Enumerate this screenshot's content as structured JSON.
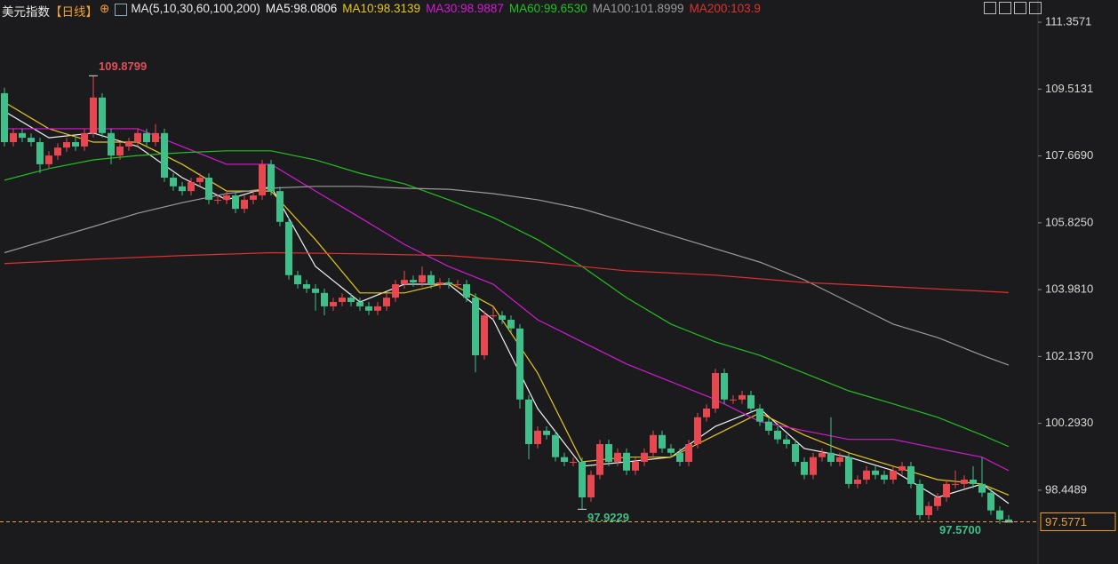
{
  "header": {
    "title": "美元指数",
    "period": "【日线】",
    "symbol": "⊕",
    "indicator": "MA(5,10,30,60,100,200)"
  },
  "chart_data": {
    "type": "candlestick",
    "up_color": "#e8474f",
    "down_color": "#3fbf8a",
    "ylim": [
      96.78,
      111.53
    ],
    "yticks": [
      {
        "value": 98.4489,
        "label": "98.4489"
      },
      {
        "value": 100.293,
        "label": "100.2930"
      },
      {
        "value": 102.137,
        "label": "102.1370"
      },
      {
        "value": 103.981,
        "label": "103.9810"
      },
      {
        "value": 105.825,
        "label": "105.8250"
      },
      {
        "value": 107.669,
        "label": "107.6690"
      },
      {
        "value": 109.5131,
        "label": "109.5131"
      },
      {
        "value": 111.3571,
        "label": "111.3571"
      }
    ],
    "grid": false,
    "candles": [
      [
        109.4,
        109.55,
        107.93,
        108.05
      ],
      [
        108.05,
        108.42,
        107.93,
        108.3
      ],
      [
        108.3,
        108.42,
        108.05,
        108.17
      ],
      [
        108.17,
        108.29,
        107.93,
        108.05
      ],
      [
        108.05,
        108.17,
        107.2,
        107.44
      ],
      [
        107.44,
        107.8,
        107.32,
        107.68
      ],
      [
        107.68,
        108.02,
        107.56,
        107.9
      ],
      [
        107.9,
        108.17,
        107.78,
        108.05
      ],
      [
        108.05,
        108.17,
        107.81,
        107.93
      ],
      [
        107.93,
        108.42,
        107.81,
        108.3
      ],
      [
        108.3,
        109.8799,
        108.18,
        109.28
      ],
      [
        109.28,
        109.4,
        108.18,
        108.3
      ],
      [
        108.3,
        108.42,
        107.44,
        107.68
      ],
      [
        107.68,
        108.05,
        107.56,
        107.93
      ],
      [
        107.93,
        108.17,
        107.81,
        108.05
      ],
      [
        108.05,
        108.42,
        107.93,
        108.3
      ],
      [
        108.3,
        108.42,
        107.93,
        108.05
      ],
      [
        108.05,
        108.55,
        107.93,
        108.3
      ],
      [
        108.3,
        108.42,
        106.95,
        107.07
      ],
      [
        107.07,
        107.19,
        106.71,
        106.83
      ],
      [
        106.83,
        106.95,
        106.58,
        106.7
      ],
      [
        106.7,
        107.07,
        106.58,
        106.95
      ],
      [
        106.95,
        107.19,
        106.83,
        107.07
      ],
      [
        107.07,
        107.19,
        106.34,
        106.46
      ],
      [
        106.46,
        106.58,
        106.34,
        106.46
      ],
      [
        106.46,
        106.7,
        106.34,
        106.58
      ],
      [
        106.58,
        106.7,
        106.09,
        106.21
      ],
      [
        106.21,
        106.58,
        106.09,
        106.46
      ],
      [
        106.46,
        106.7,
        106.34,
        106.58
      ],
      [
        106.58,
        107.56,
        106.46,
        107.44
      ],
      [
        107.44,
        107.56,
        106.58,
        106.7
      ],
      [
        106.7,
        106.82,
        105.73,
        105.85
      ],
      [
        105.85,
        105.97,
        104.26,
        104.38
      ],
      [
        104.38,
        104.5,
        104.01,
        104.13
      ],
      [
        104.13,
        104.25,
        103.89,
        104.01
      ],
      [
        104.01,
        104.13,
        103.4,
        103.89
      ],
      [
        103.89,
        104.01,
        103.27,
        103.52
      ],
      [
        103.52,
        103.76,
        103.4,
        103.64
      ],
      [
        103.64,
        103.88,
        103.52,
        103.76
      ],
      [
        103.76,
        103.88,
        103.52,
        103.64
      ],
      [
        103.64,
        103.76,
        103.4,
        103.52
      ],
      [
        103.52,
        103.64,
        103.28,
        103.4
      ],
      [
        103.4,
        103.64,
        103.28,
        103.52
      ],
      [
        103.52,
        103.88,
        103.4,
        103.76
      ],
      [
        103.76,
        104.25,
        103.64,
        104.13
      ],
      [
        104.13,
        104.5,
        104.01,
        104.25
      ],
      [
        104.25,
        104.37,
        104.06,
        104.18
      ],
      [
        104.18,
        104.62,
        104.06,
        104.38
      ],
      [
        104.38,
        104.5,
        104.01,
        104.13
      ],
      [
        104.13,
        104.3,
        104.01,
        104.18
      ],
      [
        104.18,
        104.3,
        104.01,
        104.13
      ],
      [
        104.13,
        104.25,
        104.01,
        104.13
      ],
      [
        104.13,
        104.25,
        103.64,
        103.76
      ],
      [
        103.76,
        103.88,
        101.7,
        102.17
      ],
      [
        102.17,
        103.39,
        102.05,
        103.27
      ],
      [
        103.27,
        103.5,
        103.15,
        103.27
      ],
      [
        103.27,
        103.39,
        103.03,
        103.15
      ],
      [
        103.15,
        103.27,
        102.79,
        102.91
      ],
      [
        102.91,
        103.03,
        100.7,
        100.95
      ],
      [
        100.95,
        101.07,
        99.3,
        99.72
      ],
      [
        99.72,
        100.21,
        99.6,
        100.09
      ],
      [
        100.09,
        100.21,
        99.85,
        99.97
      ],
      [
        99.97,
        100.09,
        99.24,
        99.36
      ],
      [
        99.36,
        99.48,
        99.11,
        99.23
      ],
      [
        99.23,
        99.35,
        99.11,
        99.23
      ],
      [
        99.23,
        99.35,
        97.9229,
        98.25
      ],
      [
        98.25,
        98.99,
        98.13,
        98.87
      ],
      [
        98.87,
        99.84,
        98.75,
        99.72
      ],
      [
        99.72,
        99.84,
        99.11,
        99.23
      ],
      [
        99.23,
        99.6,
        99.11,
        99.48
      ],
      [
        99.48,
        99.6,
        98.87,
        98.99
      ],
      [
        98.99,
        99.35,
        98.87,
        99.23
      ],
      [
        99.23,
        99.6,
        99.11,
        99.48
      ],
      [
        99.48,
        100.09,
        99.36,
        99.97
      ],
      [
        99.97,
        100.09,
        99.48,
        99.6
      ],
      [
        99.6,
        99.72,
        99.36,
        99.48
      ],
      [
        99.48,
        99.6,
        99.11,
        99.23
      ],
      [
        99.23,
        99.84,
        99.11,
        99.72
      ],
      [
        99.72,
        100.58,
        99.6,
        100.46
      ],
      [
        100.46,
        100.82,
        100.34,
        100.7
      ],
      [
        100.7,
        101.8,
        100.58,
        101.68
      ],
      [
        101.68,
        101.8,
        100.83,
        100.95
      ],
      [
        100.95,
        101.07,
        100.83,
        100.95
      ],
      [
        100.95,
        101.19,
        100.83,
        101.07
      ],
      [
        101.07,
        101.19,
        100.58,
        100.7
      ],
      [
        100.7,
        100.82,
        100.22,
        100.34
      ],
      [
        100.34,
        100.46,
        99.97,
        100.09
      ],
      [
        100.09,
        100.21,
        99.73,
        99.85
      ],
      [
        99.85,
        99.97,
        99.6,
        99.72
      ],
      [
        99.72,
        99.84,
        99.11,
        99.23
      ],
      [
        99.23,
        99.35,
        98.75,
        98.87
      ],
      [
        98.87,
        99.48,
        98.75,
        99.36
      ],
      [
        99.36,
        99.6,
        99.24,
        99.48
      ],
      [
        99.48,
        100.46,
        99.11,
        99.23
      ],
      [
        99.23,
        99.48,
        99.11,
        99.36
      ],
      [
        99.36,
        99.48,
        98.5,
        98.62
      ],
      [
        98.62,
        98.86,
        98.5,
        98.74
      ],
      [
        98.74,
        99.11,
        98.62,
        98.99
      ],
      [
        98.99,
        99.11,
        98.75,
        98.87
      ],
      [
        98.87,
        98.99,
        98.62,
        98.74
      ],
      [
        98.74,
        99.11,
        98.62,
        98.99
      ],
      [
        98.99,
        99.23,
        98.87,
        99.11
      ],
      [
        99.11,
        99.23,
        98.5,
        98.62
      ],
      [
        98.62,
        98.74,
        97.64,
        97.76
      ],
      [
        97.76,
        98.13,
        97.64,
        98.01
      ],
      [
        98.01,
        98.37,
        97.89,
        98.25
      ],
      [
        98.25,
        98.74,
        98.13,
        98.62
      ],
      [
        98.62,
        98.99,
        98.5,
        98.62
      ],
      [
        98.62,
        98.86,
        98.5,
        98.74
      ],
      [
        98.74,
        99.11,
        98.5,
        98.62
      ],
      [
        98.62,
        99.35,
        98.26,
        98.38
      ],
      [
        98.38,
        98.5,
        97.77,
        97.89
      ],
      [
        97.89,
        98.01,
        97.52,
        97.64
      ],
      [
        97.64,
        97.76,
        97.57,
        97.5771
      ]
    ],
    "series": [
      {
        "name": "MA5:98.0806",
        "color": "#f2f2f2",
        "x": [
          0,
          5,
          10,
          15,
          20,
          25,
          30,
          35,
          40,
          45,
          50,
          55,
          60,
          65,
          70,
          75,
          80,
          85,
          90,
          95,
          100,
          105,
          110,
          113
        ],
        "values": [
          108.9,
          108.17,
          108.3,
          107.93,
          107.07,
          106.46,
          106.83,
          104.62,
          103.64,
          104.13,
          104.13,
          103.15,
          100.7,
          99.11,
          99.23,
          99.36,
          100.21,
          100.7,
          99.6,
          99.36,
          98.99,
          98.25,
          98.62,
          98.0806
        ]
      },
      {
        "name": "MA10:98.3139",
        "color": "#e6c619",
        "x": [
          0,
          5,
          10,
          15,
          20,
          25,
          30,
          35,
          40,
          45,
          50,
          55,
          60,
          65,
          70,
          75,
          80,
          85,
          90,
          95,
          100,
          105,
          110,
          113
        ],
        "values": [
          109.15,
          108.42,
          108.05,
          108.05,
          107.44,
          106.7,
          106.7,
          105.36,
          103.89,
          103.89,
          104.18,
          103.52,
          101.68,
          99.23,
          99.36,
          99.36,
          99.97,
          100.58,
          99.97,
          99.48,
          99.11,
          98.74,
          98.62,
          98.3139
        ]
      },
      {
        "name": "MA30:98.9887",
        "color": "#d21bd2",
        "x": [
          0,
          5,
          10,
          15,
          20,
          25,
          30,
          35,
          40,
          45,
          50,
          55,
          60,
          65,
          70,
          75,
          80,
          85,
          90,
          95,
          100,
          105,
          110,
          113
        ],
        "values": [
          108.42,
          108.42,
          108.42,
          108.42,
          107.93,
          107.44,
          107.44,
          106.7,
          105.97,
          105.23,
          104.62,
          104.13,
          103.15,
          102.54,
          101.93,
          101.44,
          100.95,
          100.34,
          100.09,
          99.85,
          99.85,
          99.6,
          99.36,
          98.9887
        ]
      },
      {
        "name": "MA60:99.6530",
        "color": "#22c022",
        "x": [
          0,
          5,
          10,
          15,
          20,
          25,
          30,
          35,
          40,
          45,
          50,
          55,
          60,
          65,
          70,
          75,
          80,
          85,
          90,
          95,
          100,
          105,
          110,
          113
        ],
        "values": [
          107.0,
          107.32,
          107.56,
          107.68,
          107.76,
          107.81,
          107.81,
          107.56,
          107.19,
          106.9,
          106.46,
          105.97,
          105.36,
          104.62,
          103.76,
          103.03,
          102.54,
          102.17,
          101.68,
          101.19,
          100.83,
          100.46,
          99.97,
          99.653
        ]
      },
      {
        "name": "MA100:101.8999",
        "color": "#9a9a9a",
        "x": [
          0,
          5,
          10,
          15,
          20,
          25,
          30,
          35,
          40,
          45,
          50,
          55,
          60,
          65,
          70,
          75,
          80,
          85,
          90,
          95,
          100,
          105,
          110,
          113
        ],
        "values": [
          105.0,
          105.36,
          105.72,
          106.09,
          106.38,
          106.63,
          106.78,
          106.83,
          106.83,
          106.78,
          106.75,
          106.63,
          106.46,
          106.21,
          105.85,
          105.48,
          105.11,
          104.74,
          104.25,
          103.64,
          103.03,
          102.66,
          102.17,
          101.8999
        ]
      },
      {
        "name": "MA200:103.9",
        "color": "#e03030",
        "x": [
          0,
          10,
          20,
          30,
          40,
          50,
          60,
          70,
          80,
          90,
          100,
          110,
          113
        ],
        "values": [
          104.7,
          104.82,
          104.92,
          105.0,
          104.97,
          104.92,
          104.74,
          104.5,
          104.38,
          104.18,
          104.06,
          103.94,
          103.9
        ]
      }
    ],
    "annotations": [
      {
        "index": 10,
        "value": 109.8799,
        "label": "109.8799",
        "color": "#e0505a"
      },
      {
        "index": 65,
        "value": 97.9229,
        "label": "97.9229",
        "color": "#3fbf8a"
      },
      {
        "index": 113,
        "value": 97.57,
        "label": "97.5700",
        "color": "#3fbf8a"
      }
    ]
  }
}
